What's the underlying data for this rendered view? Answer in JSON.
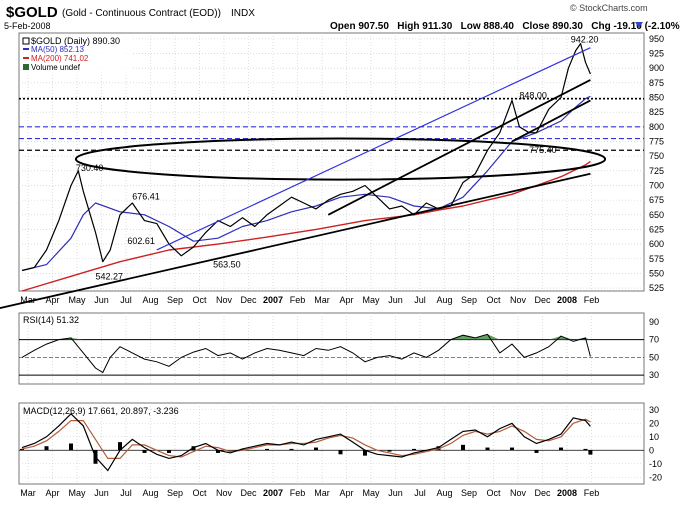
{
  "header": {
    "symbol": "$GOLD",
    "description": "(Gold - Continuous Contract (EOD))",
    "exchange": "INDX",
    "date": "5-Feb-2008",
    "watermark": "© StockCharts.com",
    "quote": "Open 907.50   High 911.30   Low 888.40   Close 890.30   Chg -19.10 (-2.10%)"
  },
  "legend": {
    "main": "$GOLD (Daily) 890.30",
    "ma50": "MA(50) 852.13",
    "ma200": "MA(200) 741.02",
    "volume": "Volume undef"
  },
  "colors": {
    "price": "#000000",
    "ma50": "#2e2eb8",
    "ma200": "#cc2222",
    "trend_blue": "#3333dd",
    "rsi_fill": "#3a8a3a",
    "macd_signal": "#b35c3a",
    "hist": "#000000",
    "grid": "#c8c8c8"
  },
  "chart_data": [
    {
      "type": "line",
      "panel": "price",
      "ylim": [
        520,
        960
      ],
      "yticks": [
        525,
        550,
        575,
        600,
        625,
        650,
        675,
        700,
        725,
        750,
        775,
        800,
        825,
        850,
        875,
        900,
        925,
        950
      ],
      "x_labels": [
        "Mar",
        "Apr",
        "May",
        "Jun",
        "Jul",
        "Aug",
        "Sep",
        "Oct",
        "Nov",
        "Dec",
        "2007",
        "Feb",
        "Mar",
        "Apr",
        "May",
        "Jun",
        "Jul",
        "Aug",
        "Sep",
        "Oct",
        "Nov",
        "Dec",
        "2008",
        "Feb"
      ],
      "x_months": [
        0,
        1,
        2,
        3,
        4,
        5,
        6,
        7,
        8,
        9,
        10,
        11,
        12,
        13,
        14,
        15,
        16,
        17,
        18,
        19,
        20,
        21,
        22,
        23
      ],
      "series": [
        {
          "name": "$GOLD (Daily)",
          "x": [
            0,
            0.5,
            1,
            1.5,
            2,
            2.3,
            2.5,
            3,
            3.3,
            3.6,
            4,
            4.5,
            5,
            5.5,
            6,
            6.5,
            7,
            7.5,
            8,
            8.5,
            9,
            9.5,
            10,
            10.5,
            11,
            11.5,
            12,
            12.5,
            13,
            13.5,
            14,
            14.5,
            15,
            15.5,
            16,
            16.5,
            17,
            17.5,
            18,
            18.5,
            19,
            19.5,
            20,
            20.3,
            20.7,
            21,
            21.5,
            22,
            22.3,
            22.6,
            22.8,
            23,
            23.2
          ],
          "values": [
            555,
            560,
            590,
            640,
            700,
            725,
            690,
            620,
            570,
            590,
            650,
            670,
            640,
            635,
            600,
            580,
            595,
            620,
            640,
            630,
            645,
            630,
            650,
            665,
            680,
            670,
            660,
            675,
            685,
            690,
            700,
            680,
            660,
            665,
            650,
            670,
            660,
            665,
            705,
            720,
            760,
            790,
            845,
            800,
            790,
            790,
            830,
            850,
            900,
            930,
            942,
            910,
            890
          ]
        },
        {
          "name": "MA(50)",
          "x": [
            0,
            1,
            2,
            2.5,
            3,
            4,
            5,
            6,
            7,
            8,
            9,
            10,
            11,
            12,
            13,
            14,
            15,
            16,
            17,
            18,
            19,
            20,
            21,
            22,
            22.5,
            23,
            23.2
          ],
          "values": [
            555,
            565,
            610,
            650,
            670,
            655,
            650,
            630,
            605,
            610,
            630,
            640,
            655,
            665,
            680,
            685,
            680,
            665,
            660,
            680,
            725,
            775,
            790,
            810,
            830,
            848,
            852
          ]
        },
        {
          "name": "MA(200)",
          "x": [
            0,
            2,
            4,
            6,
            8,
            10,
            12,
            14,
            16,
            17,
            18,
            19,
            20,
            21,
            22,
            23,
            23.2
          ],
          "values": [
            520,
            545,
            570,
            590,
            600,
            612,
            625,
            640,
            650,
            658,
            665,
            675,
            685,
            700,
            715,
            735,
            741
          ]
        }
      ],
      "trendlines": [
        {
          "color": "black",
          "x": [
            -1,
            23.2
          ],
          "values": [
            490,
            720
          ]
        },
        {
          "color": "blue",
          "x": [
            5.5,
            23.2
          ],
          "values": [
            590,
            935
          ]
        },
        {
          "color": "black",
          "x": [
            12.5,
            23.2
          ],
          "values": [
            650,
            880
          ]
        },
        {
          "color": "black",
          "x": [
            20,
            23.2
          ],
          "values": [
            775,
            845
          ]
        }
      ],
      "horizontal_lines": [
        {
          "value": 848,
          "style": "dotted",
          "color": "black"
        },
        {
          "value": 800,
          "style": "dashed",
          "color": "blue"
        },
        {
          "value": 780,
          "style": "dashed",
          "color": "blue"
        },
        {
          "value": 760,
          "style": "dashed",
          "color": "black"
        }
      ],
      "ellipse": {
        "cx": 13,
        "cy": 745,
        "rx": 10.8,
        "ry": 35
      },
      "annotations": [
        {
          "x": 2.2,
          "y": 725,
          "text": "730.40"
        },
        {
          "x": 4.5,
          "y": 676,
          "text": "676.41"
        },
        {
          "x": 4.3,
          "y": 600,
          "text": "602.61"
        },
        {
          "x": 3.0,
          "y": 540,
          "text": "542.27"
        },
        {
          "x": 7.8,
          "y": 560,
          "text": "563.50"
        },
        {
          "x": 20.3,
          "y": 848,
          "text": "848.00"
        },
        {
          "x": 20.7,
          "y": 755,
          "text": "775.40"
        },
        {
          "x": 22.4,
          "y": 944,
          "text": "942.20"
        }
      ]
    },
    {
      "type": "line",
      "panel": "rsi",
      "title": "RSI(14) 51.32",
      "ylim": [
        20,
        100
      ],
      "yticks": [
        30,
        50,
        70,
        90
      ],
      "ref_lines": [
        70,
        50,
        30
      ],
      "series": [
        {
          "name": "RSI(14)",
          "x": [
            0,
            0.5,
            1,
            1.5,
            2,
            2.5,
            3,
            3.3,
            3.6,
            4,
            4.5,
            5,
            5.5,
            6,
            6.5,
            7,
            7.5,
            8,
            8.5,
            9,
            9.5,
            10,
            10.5,
            11,
            11.5,
            12,
            12.5,
            13,
            13.5,
            14,
            14.5,
            15,
            15.5,
            16,
            16.5,
            17,
            17.5,
            18,
            18.5,
            19,
            19.5,
            20,
            20.5,
            21,
            21.5,
            22,
            22.5,
            23,
            23.2
          ],
          "values": [
            50,
            58,
            65,
            70,
            72,
            55,
            38,
            33,
            50,
            62,
            55,
            48,
            45,
            40,
            50,
            56,
            60,
            52,
            55,
            48,
            55,
            60,
            58,
            55,
            52,
            60,
            58,
            62,
            55,
            45,
            50,
            52,
            48,
            55,
            50,
            58,
            70,
            75,
            72,
            76,
            55,
            65,
            50,
            55,
            62,
            74,
            68,
            72,
            51
          ]
        }
      ]
    },
    {
      "type": "line",
      "panel": "macd",
      "title": "MACD(12,26,9) 17.661, 20.897, -3.236",
      "ylim": [
        -25,
        35
      ],
      "yticks": [
        -20,
        -10,
        0,
        10,
        20,
        30
      ],
      "series": [
        {
          "name": "MACD(12,26,9)",
          "x": [
            0,
            0.5,
            1,
            1.5,
            2,
            2.5,
            3,
            3.5,
            4,
            4.5,
            5,
            5.5,
            6,
            6.5,
            7,
            7.5,
            8,
            8.5,
            9,
            9.5,
            10,
            10.5,
            11,
            11.5,
            12,
            12.5,
            13,
            13.5,
            14,
            14.5,
            15,
            15.5,
            16,
            16.5,
            17,
            17.5,
            18,
            18.5,
            19,
            19.5,
            20,
            20.5,
            21,
            21.5,
            22,
            22.5,
            23,
            23.2
          ],
          "values": [
            2,
            5,
            10,
            18,
            27,
            18,
            -5,
            -15,
            0,
            8,
            2,
            -3,
            -6,
            -4,
            2,
            5,
            0,
            -2,
            1,
            3,
            5,
            4,
            6,
            4,
            8,
            10,
            12,
            6,
            0,
            -3,
            -4,
            -5,
            -2,
            0,
            2,
            8,
            14,
            15,
            10,
            16,
            20,
            10,
            5,
            8,
            12,
            24,
            22,
            17.661
          ]
        },
        {
          "name": "Signal",
          "x": [
            0,
            0.5,
            1,
            1.5,
            2,
            2.5,
            3,
            3.5,
            4,
            4.5,
            5,
            5.5,
            6,
            6.5,
            7,
            7.5,
            8,
            8.5,
            9,
            9.5,
            10,
            10.5,
            11,
            11.5,
            12,
            12.5,
            13,
            13.5,
            14,
            14.5,
            15,
            15.5,
            16,
            16.5,
            17,
            17.5,
            18,
            18.5,
            19,
            19.5,
            20,
            20.5,
            21,
            21.5,
            22,
            22.5,
            23,
            23.2
          ],
          "values": [
            1,
            3,
            7,
            14,
            22,
            22,
            8,
            -6,
            -6,
            4,
            4,
            0,
            -4,
            -5,
            -1,
            3,
            2,
            -1,
            0,
            2,
            4,
            4,
            5,
            5,
            6,
            9,
            11,
            9,
            4,
            0,
            -2,
            -4,
            -3,
            -1,
            1,
            5,
            11,
            14,
            12,
            14,
            18,
            14,
            8,
            7,
            10,
            20,
            23,
            20.897
          ]
        },
        {
          "name": "Histogram",
          "x": [
            0,
            1,
            2,
            3,
            4,
            5,
            6,
            7,
            8,
            9,
            10,
            11,
            12,
            13,
            14,
            15,
            16,
            17,
            18,
            19,
            20,
            21,
            22,
            23,
            23.2
          ],
          "values": [
            1,
            3,
            5,
            -10,
            6,
            -2,
            -2,
            3,
            -2,
            1,
            1,
            1,
            2,
            -3,
            -4,
            -1,
            1,
            3,
            4,
            2,
            2,
            -2,
            2,
            1,
            -3.236
          ]
        }
      ]
    }
  ]
}
